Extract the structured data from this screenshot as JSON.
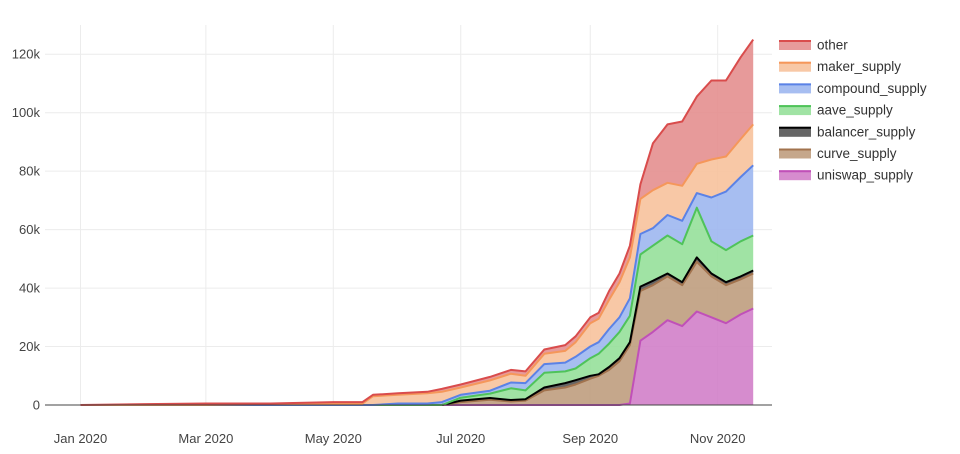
{
  "chart_data": {
    "type": "area",
    "stacked": true,
    "grid": true,
    "legend_position": "right",
    "ylim": [
      0,
      130000
    ],
    "xlim": [
      "2019-12-15",
      "2020-11-27"
    ],
    "x_ticks": [
      "2020-01-01",
      "2020-03-01",
      "2020-05-01",
      "2020-07-01",
      "2020-09-01",
      "2020-11-01"
    ],
    "x_tick_labels": [
      "Jan 2020",
      "Mar 2020",
      "May 2020",
      "Jul 2020",
      "Sep 2020",
      "Nov 2020"
    ],
    "y_ticks": [
      0,
      20000,
      40000,
      60000,
      80000,
      100000,
      120000
    ],
    "y_tick_labels": [
      "0",
      "20k",
      "40k",
      "60k",
      "80k",
      "100k",
      "120k"
    ],
    "x": [
      "2020-01-01",
      "2020-02-01",
      "2020-03-01",
      "2020-04-01",
      "2020-05-01",
      "2020-05-15",
      "2020-05-20",
      "2020-06-01",
      "2020-06-15",
      "2020-06-22",
      "2020-07-01",
      "2020-07-15",
      "2020-07-25",
      "2020-08-01",
      "2020-08-10",
      "2020-08-20",
      "2020-08-25",
      "2020-09-01",
      "2020-09-05",
      "2020-09-10",
      "2020-09-15",
      "2020-09-20",
      "2020-09-25",
      "2020-10-01",
      "2020-10-08",
      "2020-10-15",
      "2020-10-22",
      "2020-10-29",
      "2020-11-05",
      "2020-11-12",
      "2020-11-18"
    ],
    "series": [
      {
        "name": "uniswap_supply",
        "color": "#d17fc9",
        "line_color": "#c050b8",
        "values": [
          0,
          0,
          0,
          0,
          0,
          0,
          0,
          0,
          0,
          0,
          0,
          0,
          0,
          0,
          0,
          0,
          0,
          0,
          0,
          0,
          0,
          500,
          22000,
          25000,
          29000,
          27000,
          32000,
          30000,
          28000,
          31000,
          33000
        ]
      },
      {
        "name": "curve_supply",
        "color": "#bf9d7e",
        "line_color": "#a2734e",
        "values": [
          0,
          0,
          0,
          0,
          0,
          0,
          0,
          0,
          0,
          0,
          1000,
          1800,
          1200,
          1500,
          5000,
          6000,
          7000,
          9000,
          10000,
          12000,
          15000,
          20000,
          17000,
          16000,
          15000,
          14000,
          17000,
          14000,
          13000,
          12000,
          12000
        ]
      },
      {
        "name": "balancer_supply",
        "color": "#555555",
        "line_color": "#000000",
        "values": [
          0,
          0,
          0,
          0,
          0,
          0,
          0,
          0,
          0,
          0,
          500,
          600,
          500,
          500,
          1000,
          1500,
          1500,
          1000,
          500,
          1000,
          1000,
          1000,
          1500,
          1500,
          1000,
          1000,
          1500,
          1000,
          1000,
          1000,
          1000
        ]
      },
      {
        "name": "aave_supply",
        "color": "#96e09a",
        "line_color": "#4fc35a",
        "values": [
          0,
          0,
          0,
          0,
          0,
          0,
          0,
          0,
          0,
          0,
          1000,
          1500,
          4000,
          3000,
          5000,
          4000,
          4000,
          6000,
          7000,
          8000,
          9000,
          9000,
          11000,
          12000,
          13000,
          13000,
          17000,
          11000,
          11000,
          12000,
          12000
        ]
      },
      {
        "name": "compound_supply",
        "color": "#9db7f0",
        "line_color": "#5b82e6",
        "values": [
          0,
          0,
          0,
          0,
          0,
          0,
          0,
          500,
          500,
          1000,
          1000,
          1000,
          2000,
          2500,
          3000,
          3000,
          4000,
          4000,
          4000,
          5000,
          5000,
          6000,
          7000,
          6000,
          7000,
          8000,
          5000,
          15000,
          20000,
          22000,
          24000
        ]
      },
      {
        "name": "maker_supply",
        "color": "#f7c29c",
        "line_color": "#f5975a",
        "values": [
          0,
          0,
          0,
          200,
          500,
          500,
          3000,
          3000,
          3500,
          3500,
          2500,
          3500,
          3000,
          2500,
          3500,
          4000,
          5000,
          8000,
          8000,
          10000,
          12000,
          14000,
          12000,
          13000,
          11000,
          12000,
          10000,
          13000,
          12000,
          13000,
          14000
        ]
      },
      {
        "name": "other",
        "color": "#e48f8f",
        "line_color": "#d94c4c",
        "values": [
          0,
          300,
          500,
          300,
          500,
          500,
          500,
          500,
          500,
          1000,
          1000,
          1200,
          1300,
          1500,
          1500,
          2000,
          2000,
          2000,
          2000,
          3000,
          3000,
          4000,
          5000,
          16000,
          20000,
          22000,
          23000,
          27000,
          26000,
          28000,
          29000
        ]
      }
    ],
    "legend_order": [
      "other",
      "maker_supply",
      "compound_supply",
      "aave_supply",
      "balancer_supply",
      "curve_supply",
      "uniswap_supply"
    ]
  }
}
